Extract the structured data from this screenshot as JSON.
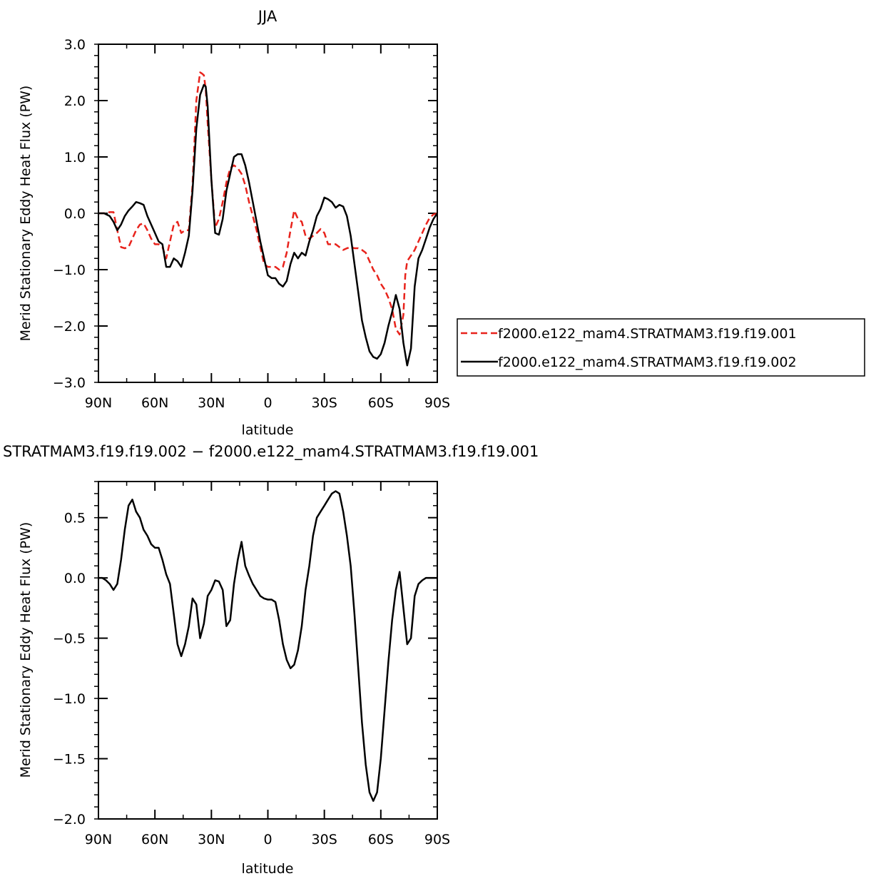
{
  "chart_data": [
    {
      "type": "line",
      "title": "JJA",
      "xlabel": "latitude",
      "ylabel": "Merid Stationary Eddy Heat Flux (PW)",
      "xlim": [
        90,
        -90
      ],
      "ylim": [
        -3.0,
        3.0
      ],
      "x_ticks": [
        90,
        60,
        30,
        0,
        -30,
        -60,
        -90
      ],
      "x_tick_labels": [
        "90N",
        "60N",
        "30N",
        "0",
        "30S",
        "60S",
        "90S"
      ],
      "y_ticks": [
        3.0,
        2.0,
        1.0,
        0.0,
        -1.0,
        -2.0,
        -3.0
      ],
      "y_tick_labels": [
        "3.0",
        "2.0",
        "1.0",
        "0.0",
        "−1.0",
        "−2.0",
        "−3.0"
      ],
      "legend_position": "right",
      "series": [
        {
          "name": "f2000.e122_mam4.STRATMAM3.f19.f19.001",
          "color": "#e8231c",
          "style": "dashed",
          "x": [
            90,
            87,
            84,
            82,
            80,
            78,
            76,
            74,
            72,
            70,
            68,
            66,
            64,
            62,
            60,
            58,
            56,
            54,
            52,
            50,
            48,
            46,
            44,
            42,
            40,
            38,
            36,
            35,
            34,
            33,
            32,
            30,
            28,
            26,
            24,
            22,
            20,
            18,
            16,
            14,
            12,
            10,
            8,
            6,
            4,
            2,
            0,
            -2,
            -4,
            -6,
            -8,
            -10,
            -12,
            -14,
            -16,
            -18,
            -20,
            -22,
            -24,
            -26,
            -28,
            -30,
            -32,
            -34,
            -36,
            -38,
            -40,
            -42,
            -44,
            -46,
            -48,
            -50,
            -52,
            -54,
            -56,
            -58,
            -60,
            -62,
            -64,
            -66,
            -68,
            -70,
            -72,
            -73,
            -74,
            -76,
            -78,
            -80,
            -82,
            -84,
            -86,
            -88,
            -90
          ],
          "y": [
            0.0,
            0.0,
            0.02,
            0.02,
            -0.3,
            -0.6,
            -0.62,
            -0.6,
            -0.45,
            -0.3,
            -0.2,
            -0.18,
            -0.3,
            -0.45,
            -0.55,
            -0.55,
            -0.6,
            -0.8,
            -0.5,
            -0.2,
            -0.15,
            -0.35,
            -0.3,
            -0.3,
            0.5,
            2.0,
            2.5,
            2.48,
            2.45,
            2.2,
            1.6,
            0.6,
            -0.25,
            -0.1,
            0.2,
            0.55,
            0.8,
            0.85,
            0.8,
            0.7,
            0.5,
            0.2,
            -0.05,
            -0.3,
            -0.6,
            -0.9,
            -0.95,
            -0.95,
            -0.95,
            -1.0,
            -0.95,
            -0.7,
            -0.3,
            0.05,
            -0.1,
            -0.15,
            -0.4,
            -0.45,
            -0.4,
            -0.35,
            -0.28,
            -0.35,
            -0.55,
            -0.55,
            -0.55,
            -0.6,
            -0.65,
            -0.62,
            -0.6,
            -0.62,
            -0.62,
            -0.65,
            -0.7,
            -0.85,
            -1.0,
            -1.1,
            -1.25,
            -1.35,
            -1.5,
            -1.7,
            -2.05,
            -2.15,
            -1.8,
            -1.1,
            -0.85,
            -0.75,
            -0.65,
            -0.5,
            -0.35,
            -0.2,
            -0.08,
            -0.02,
            0.0
          ]
        },
        {
          "name": "f2000.e122_mam4.STRATMAM3.f19.f19.002",
          "color": "#000000",
          "style": "solid",
          "x": [
            90,
            87,
            84,
            82,
            80,
            78,
            76,
            74,
            72,
            70,
            68,
            66,
            64,
            62,
            60,
            58,
            56,
            54,
            52,
            50,
            48,
            46,
            44,
            42,
            40,
            38,
            36,
            34,
            33,
            32,
            30,
            28,
            26,
            24,
            22,
            20,
            18,
            16,
            14,
            12,
            10,
            8,
            6,
            4,
            2,
            0,
            -2,
            -4,
            -6,
            -8,
            -10,
            -12,
            -14,
            -16,
            -18,
            -20,
            -22,
            -24,
            -26,
            -28,
            -30,
            -32,
            -34,
            -36,
            -38,
            -40,
            -42,
            -44,
            -46,
            -48,
            -50,
            -52,
            -54,
            -56,
            -58,
            -60,
            -62,
            -64,
            -66,
            -68,
            -70,
            -72,
            -74,
            -76,
            -78,
            -80,
            -82,
            -84,
            -86,
            -88,
            -90
          ],
          "y": [
            0.0,
            0.0,
            -0.05,
            -0.15,
            -0.3,
            -0.2,
            -0.05,
            0.05,
            0.12,
            0.2,
            0.18,
            0.15,
            -0.05,
            -0.2,
            -0.35,
            -0.5,
            -0.55,
            -0.95,
            -0.95,
            -0.8,
            -0.85,
            -0.95,
            -0.7,
            -0.4,
            0.4,
            1.5,
            2.1,
            2.28,
            2.25,
            1.9,
            0.6,
            -0.35,
            -0.38,
            -0.1,
            0.4,
            0.7,
            1.0,
            1.05,
            1.05,
            0.85,
            0.55,
            0.2,
            -0.15,
            -0.5,
            -0.8,
            -1.1,
            -1.15,
            -1.15,
            -1.25,
            -1.3,
            -1.2,
            -0.9,
            -0.7,
            -0.8,
            -0.7,
            -0.75,
            -0.5,
            -0.3,
            -0.05,
            0.08,
            0.28,
            0.25,
            0.2,
            0.1,
            0.15,
            0.12,
            -0.05,
            -0.4,
            -0.9,
            -1.4,
            -1.9,
            -2.2,
            -2.45,
            -2.55,
            -2.58,
            -2.5,
            -2.3,
            -2.0,
            -1.75,
            -1.45,
            -1.7,
            -2.3,
            -2.7,
            -2.4,
            -1.3,
            -0.8,
            -0.65,
            -0.45,
            -0.25,
            -0.1,
            0.0
          ]
        }
      ]
    },
    {
      "type": "line",
      "title": "STRATMAM3.f19.f19.002 − f2000.e122_mam4.STRATMAM3.f19.f19.001",
      "xlabel": "latitude",
      "ylabel": "Merid Stationary Eddy Heat Flux (PW)",
      "xlim": [
        90,
        -90
      ],
      "ylim": [
        -2.0,
        0.8
      ],
      "x_ticks": [
        90,
        60,
        30,
        0,
        -30,
        -60,
        -90
      ],
      "x_tick_labels": [
        "90N",
        "60N",
        "30N",
        "0",
        "30S",
        "60S",
        "90S"
      ],
      "y_ticks": [
        0.5,
        0.0,
        -0.5,
        -1.0,
        -1.5,
        -2.0
      ],
      "y_tick_labels": [
        "0.5",
        "0.0",
        "−0.5",
        "−1.0",
        "−1.5",
        "−2.0"
      ],
      "series": [
        {
          "color": "#000000",
          "style": "solid",
          "x": [
            90,
            88,
            86,
            84,
            82,
            80,
            78,
            76,
            74,
            72,
            70,
            68,
            66,
            64,
            62,
            60,
            58,
            56,
            54,
            52,
            50,
            48,
            46,
            44,
            42,
            40,
            38,
            36,
            34,
            32,
            30,
            28,
            26,
            24,
            22,
            20,
            18,
            16,
            14,
            12,
            10,
            8,
            6,
            4,
            2,
            0,
            -2,
            -4,
            -6,
            -8,
            -10,
            -12,
            -14,
            -16,
            -18,
            -20,
            -22,
            -24,
            -26,
            -28,
            -30,
            -32,
            -34,
            -36,
            -38,
            -40,
            -42,
            -44,
            -46,
            -48,
            -50,
            -52,
            -54,
            -56,
            -58,
            -60,
            -62,
            -64,
            -66,
            -68,
            -70,
            -72,
            -74,
            -76,
            -78,
            -80,
            -82,
            -84,
            -86,
            -88,
            -90
          ],
          "y": [
            0.0,
            0.0,
            -0.02,
            -0.05,
            -0.1,
            -0.05,
            0.15,
            0.4,
            0.6,
            0.65,
            0.55,
            0.5,
            0.4,
            0.35,
            0.28,
            0.25,
            0.25,
            0.15,
            0.03,
            -0.05,
            -0.3,
            -0.55,
            -0.65,
            -0.55,
            -0.4,
            -0.17,
            -0.22,
            -0.5,
            -0.38,
            -0.15,
            -0.1,
            -0.02,
            -0.03,
            -0.1,
            -0.4,
            -0.35,
            -0.05,
            0.15,
            0.3,
            0.1,
            0.02,
            -0.05,
            -0.1,
            -0.15,
            -0.17,
            -0.18,
            -0.18,
            -0.2,
            -0.35,
            -0.55,
            -0.68,
            -0.75,
            -0.72,
            -0.6,
            -0.4,
            -0.1,
            0.1,
            0.35,
            0.5,
            0.55,
            0.6,
            0.65,
            0.7,
            0.72,
            0.7,
            0.55,
            0.35,
            0.1,
            -0.3,
            -0.75,
            -1.2,
            -1.55,
            -1.78,
            -1.85,
            -1.78,
            -1.5,
            -1.1,
            -0.7,
            -0.35,
            -0.1,
            0.05,
            -0.25,
            -0.55,
            -0.5,
            -0.15,
            -0.05,
            -0.02,
            0.0,
            0.0,
            0.0,
            0.0
          ]
        }
      ]
    }
  ]
}
